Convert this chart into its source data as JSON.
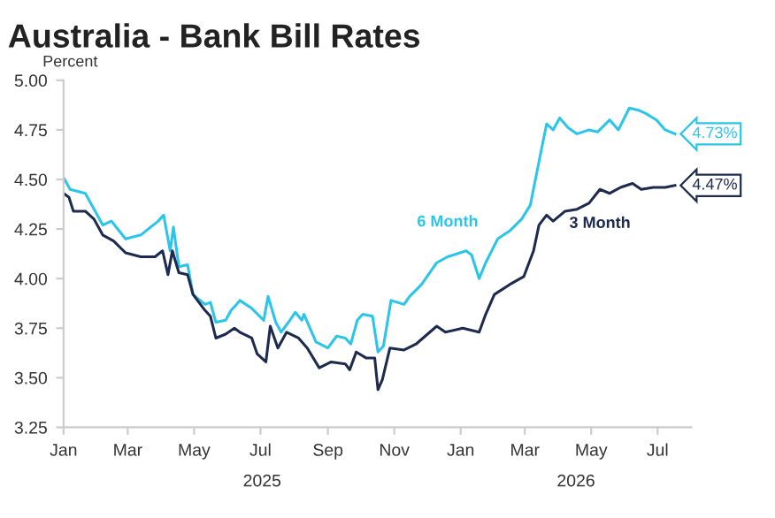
{
  "chart_data": {
    "type": "line",
    "title": "Australia - Bank Bill Rates",
    "ylabel": "Percent",
    "xlim": [
      "2025-01-01",
      "2026-08-01"
    ],
    "xticks": [
      {
        "value": "2025-01-01",
        "label": "Jan"
      },
      {
        "value": "2025-03-01",
        "label": "Mar"
      },
      {
        "value": "2025-05-01",
        "label": "May"
      },
      {
        "value": "2025-07-01",
        "label": "Jul"
      },
      {
        "value": "2025-09-01",
        "label": "Sep"
      },
      {
        "value": "2025-11-01",
        "label": "Nov"
      },
      {
        "value": "2026-01-01",
        "label": "Jan"
      },
      {
        "value": "2026-03-01",
        "label": "Mar"
      },
      {
        "value": "2026-05-01",
        "label": "May"
      },
      {
        "value": "2026-07-01",
        "label": "Jul"
      }
    ],
    "ylim": [
      3.25,
      5.0
    ],
    "yticks": [
      {
        "value": 3.25,
        "label": "3.25"
      },
      {
        "value": 3.5,
        "label": "3.50"
      },
      {
        "value": 3.75,
        "label": "3.75"
      },
      {
        "value": 4.0,
        "label": "4.00"
      },
      {
        "value": 4.25,
        "label": "4.25"
      },
      {
        "value": 4.5,
        "label": "4.50"
      },
      {
        "value": 4.75,
        "label": "4.75"
      },
      {
        "value": 5.0,
        "label": "5.00"
      }
    ],
    "grid": false,
    "legend": false,
    "marker": "none",
    "line_style": "solid",
    "annotations": [
      "2025",
      "2026"
    ],
    "series": [
      {
        "name": "6 Month",
        "color": "#2cc5ea",
        "x": [
          "2025-01-01",
          "2025-01-07",
          "2025-01-21",
          "2025-02-06",
          "2025-02-14",
          "2025-02-27",
          "2025-03-13",
          "2025-03-29",
          "2025-04-03",
          "2025-04-09",
          "2025-04-12",
          "2025-04-17",
          "2025-04-25",
          "2025-04-30",
          "2025-05-11",
          "2025-05-16",
          "2025-05-21",
          "2025-05-30",
          "2025-06-04",
          "2025-06-09",
          "2025-06-12",
          "2025-06-23",
          "2025-07-04",
          "2025-07-08",
          "2025-07-15",
          "2025-07-20",
          "2025-07-28",
          "2025-08-02",
          "2025-08-08",
          "2025-08-10",
          "2025-08-21",
          "2025-09-01",
          "2025-09-09",
          "2025-09-17",
          "2025-09-22",
          "2025-09-28",
          "2025-10-03",
          "2025-10-12",
          "2025-10-17",
          "2025-10-22",
          "2025-10-29",
          "2025-11-10",
          "2025-11-15",
          "2025-11-26",
          "2025-12-10",
          "2025-12-20",
          "2026-01-06",
          "2026-01-11",
          "2026-01-18",
          "2026-01-24",
          "2026-02-04",
          "2026-02-15",
          "2026-02-26",
          "2026-03-06",
          "2026-03-14",
          "2026-03-21",
          "2026-03-27",
          "2026-04-02",
          "2026-04-10",
          "2026-04-18",
          "2026-04-29",
          "2026-05-07",
          "2026-05-18",
          "2026-05-26",
          "2026-06-05",
          "2026-06-13",
          "2026-06-21",
          "2026-06-30",
          "2026-07-08",
          "2026-07-17"
        ],
        "values": [
          4.51,
          4.45,
          4.43,
          4.27,
          4.29,
          4.2,
          4.22,
          4.29,
          4.32,
          4.14,
          4.26,
          4.06,
          4.07,
          3.92,
          3.87,
          3.88,
          3.78,
          3.79,
          3.84,
          3.87,
          3.89,
          3.85,
          3.79,
          3.91,
          3.78,
          3.73,
          3.79,
          3.83,
          3.79,
          3.82,
          3.68,
          3.65,
          3.71,
          3.7,
          3.67,
          3.79,
          3.82,
          3.81,
          3.63,
          3.66,
          3.89,
          3.87,
          3.91,
          3.97,
          4.08,
          4.11,
          4.14,
          4.12,
          4.0,
          4.08,
          4.2,
          4.24,
          4.3,
          4.37,
          4.59,
          4.78,
          4.75,
          4.81,
          4.76,
          4.73,
          4.75,
          4.74,
          4.8,
          4.75,
          4.86,
          4.85,
          4.83,
          4.8,
          4.75,
          4.73
        ],
        "value_labels": [
          null,
          null,
          null,
          null,
          null,
          null,
          null,
          null,
          null,
          null,
          null,
          null,
          null,
          null,
          null,
          null,
          null,
          null,
          null,
          null,
          null,
          null,
          null,
          null,
          null,
          null,
          null,
          null,
          null,
          null,
          null,
          null,
          null,
          null,
          null,
          null,
          null,
          null,
          null,
          null,
          null,
          null,
          null,
          null,
          null,
          null,
          null,
          null,
          null,
          null,
          null,
          null,
          null,
          null,
          null,
          null,
          null,
          null,
          null,
          null,
          null,
          null,
          null,
          null,
          null,
          null,
          null,
          null,
          null,
          "4.73%"
        ]
      },
      {
        "name": "3 Month",
        "color": "#1e2b4f",
        "x": [
          "2025-01-01",
          "2025-01-06",
          "2025-01-10",
          "2025-01-21",
          "2025-01-29",
          "2025-02-06",
          "2025-02-16",
          "2025-02-27",
          "2025-03-13",
          "2025-03-26",
          "2025-04-02",
          "2025-04-07",
          "2025-04-11",
          "2025-04-17",
          "2025-04-25",
          "2025-04-30",
          "2025-05-11",
          "2025-05-16",
          "2025-05-21",
          "2025-05-30",
          "2025-06-07",
          "2025-06-12",
          "2025-06-23",
          "2025-06-28",
          "2025-07-06",
          "2025-07-10",
          "2025-07-17",
          "2025-07-25",
          "2025-08-05",
          "2025-08-13",
          "2025-08-24",
          "2025-09-04",
          "2025-09-17",
          "2025-09-21",
          "2025-09-27",
          "2025-10-06",
          "2025-10-14",
          "2025-10-17",
          "2025-10-21",
          "2025-10-28",
          "2025-11-10",
          "2025-11-21",
          "2025-12-10",
          "2025-12-18",
          "2026-01-03",
          "2026-01-18",
          "2026-01-24",
          "2026-02-01",
          "2026-02-15",
          "2026-02-28",
          "2026-03-09",
          "2026-03-14",
          "2026-03-21",
          "2026-03-27",
          "2026-04-07",
          "2026-04-18",
          "2026-04-29",
          "2026-05-09",
          "2026-05-18",
          "2026-05-28",
          "2026-06-08",
          "2026-06-16",
          "2026-06-27",
          "2026-07-08",
          "2026-07-17"
        ],
        "values": [
          4.43,
          4.41,
          4.34,
          4.34,
          4.3,
          4.22,
          4.19,
          4.13,
          4.11,
          4.11,
          4.14,
          4.02,
          4.14,
          4.03,
          4.02,
          3.92,
          3.84,
          3.81,
          3.7,
          3.72,
          3.75,
          3.73,
          3.7,
          3.62,
          3.58,
          3.76,
          3.65,
          3.73,
          3.7,
          3.65,
          3.55,
          3.58,
          3.57,
          3.54,
          3.63,
          3.6,
          3.6,
          3.44,
          3.49,
          3.65,
          3.64,
          3.67,
          3.76,
          3.73,
          3.75,
          3.73,
          3.82,
          3.92,
          3.97,
          4.01,
          4.14,
          4.27,
          4.32,
          4.29,
          4.34,
          4.35,
          4.38,
          4.45,
          4.43,
          4.46,
          4.48,
          4.45,
          4.46,
          4.46,
          4.47
        ],
        "value_labels": [
          null,
          null,
          null,
          null,
          null,
          null,
          null,
          null,
          null,
          null,
          null,
          null,
          null,
          null,
          null,
          null,
          null,
          null,
          null,
          null,
          null,
          null,
          null,
          null,
          null,
          null,
          null,
          null,
          null,
          null,
          null,
          null,
          null,
          null,
          null,
          null,
          null,
          null,
          null,
          null,
          null,
          null,
          null,
          null,
          null,
          null,
          null,
          null,
          null,
          null,
          null,
          null,
          null,
          null,
          null,
          null,
          null,
          null,
          null,
          null,
          null,
          null,
          null,
          null,
          "4.47%"
        ]
      }
    ]
  }
}
